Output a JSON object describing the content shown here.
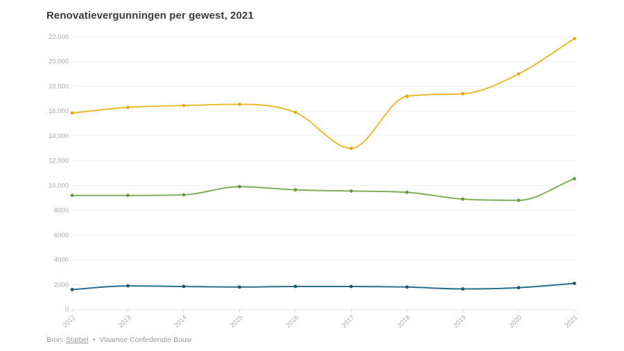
{
  "header": {
    "title": "Renovatievergunningen per gewest, 2021"
  },
  "footer": {
    "label": "Bron:",
    "link": "Statbel",
    "separator": "•",
    "rest": "Vlaamse Confederatie Bouw"
  },
  "style": {
    "background": "#ffffff",
    "title_color": "#3b3b3b",
    "gridline_color": "#efefef",
    "zeroline_color": "#e3e3e3",
    "tick_color": "#dddddd",
    "axis_label_color": "#aaaaaa",
    "source_color": "#9b9b9b"
  },
  "chart_data": {
    "type": "line",
    "title": "Renovatievergunningen per gewest, 2021",
    "x": [
      "2012",
      "2013",
      "2014",
      "2015",
      "2016",
      "2017",
      "2018",
      "2019",
      "2020",
      "2021"
    ],
    "series": [
      {
        "name": "yellow-series",
        "color": "#E9BC2E",
        "point_color": "#DFA91B",
        "values": [
          15850,
          16300,
          16450,
          16550,
          15900,
          13000,
          17200,
          17400,
          19000,
          21850
        ]
      },
      {
        "name": "green-series",
        "color": "#7FAE5B",
        "point_color": "#639840",
        "values": [
          9200,
          9200,
          9250,
          9900,
          9650,
          9550,
          9450,
          8900,
          8800,
          10550
        ]
      },
      {
        "name": "blue-series",
        "color": "#2B6D8C",
        "point_color": "#175878",
        "values": [
          1600,
          1900,
          1850,
          1800,
          1850,
          1850,
          1800,
          1650,
          1750,
          2100
        ]
      }
    ],
    "ylim": [
      0,
      22000
    ],
    "ytick_values": [
      0,
      2000,
      4000,
      6000,
      8000,
      10000,
      12000,
      14000,
      16000,
      18000,
      20000,
      22000
    ],
    "ytick_labels": [
      "0",
      "2000",
      "4000",
      "6000",
      "8000",
      "10,000",
      "12,000",
      "14,000",
      "16,000",
      "18,000",
      "20,000",
      "22,000"
    ],
    "xlabel": "",
    "ylabel": "",
    "grid": "horizontal",
    "legend": "none",
    "x_label_rotation": -45
  }
}
